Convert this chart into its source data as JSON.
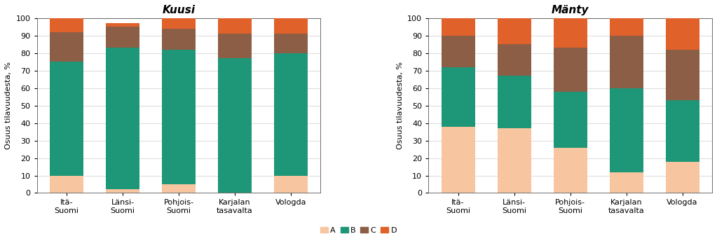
{
  "categories": [
    "Itä-\nSuomi",
    "Länsi-\nSuomi",
    "Pohjois-\nSuomi",
    "Karjalan\ntasavalta",
    "Vologda"
  ],
  "kuusi": {
    "A": [
      10,
      2,
      5,
      0,
      10
    ],
    "B": [
      65,
      81,
      77,
      77,
      70
    ],
    "C": [
      17,
      12,
      12,
      14,
      11
    ],
    "D": [
      8,
      2,
      6,
      9,
      9
    ]
  },
  "manty": {
    "A": [
      38,
      37,
      26,
      12,
      18
    ],
    "B": [
      34,
      30,
      32,
      48,
      35
    ],
    "C": [
      18,
      18,
      25,
      30,
      29
    ],
    "D": [
      10,
      15,
      17,
      10,
      18
    ]
  },
  "colors": {
    "A": "#F7C59F",
    "B": "#1E9678",
    "C": "#8B5E45",
    "D": "#E0612A"
  },
  "title_kuusi": "Kuusi",
  "title_manty": "Mänty",
  "ylabel": "Osuus tilavuudesta, %",
  "ylim": [
    0,
    100
  ],
  "yticks": [
    0,
    10,
    20,
    30,
    40,
    50,
    60,
    70,
    80,
    90,
    100
  ],
  "bar_width": 0.6,
  "background_color": "#FFFFFF",
  "title_fontsize": 11,
  "axis_fontsize": 8,
  "tick_fontsize": 8,
  "legend_fontsize": 8
}
